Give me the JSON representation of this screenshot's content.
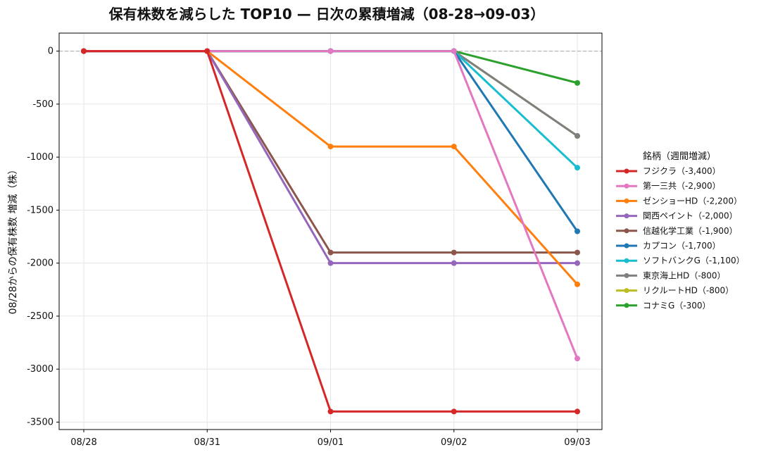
{
  "chart_data": {
    "type": "line",
    "title": "保有株数を減らした TOP10 — 日次の累積増減（08-28→09-03）",
    "xlabel": "",
    "ylabel": "08/28からの保有株数 増減（株）",
    "categories": [
      "08/28",
      "08/31",
      "09/01",
      "09/02",
      "09/03"
    ],
    "ylim": [
      -3570,
      170
    ],
    "yticks": [
      0,
      -500,
      -1000,
      -1500,
      -2000,
      -2500,
      -3000,
      -3500
    ],
    "ytick_labels": [
      "0",
      "-500",
      "-1000",
      "-1500",
      "-2000",
      "-2500",
      "-3000",
      "-3500"
    ],
    "grid": true,
    "zero_line": true,
    "legend_title": "銘柄（週間増減）",
    "legend_position": "right",
    "series": [
      {
        "name": "フジクラ（-3,400）",
        "color": "#d62728",
        "values": [
          0,
          0,
          -3400,
          -3400,
          -3400
        ]
      },
      {
        "name": "第一三共（-2,900）",
        "color": "#e377c2",
        "values": [
          0,
          0,
          0,
          0,
          -2900
        ]
      },
      {
        "name": "ゼンショーHD（-2,200）",
        "color": "#ff7f0e",
        "values": [
          0,
          0,
          -900,
          -900,
          -2200
        ]
      },
      {
        "name": "関西ペイント（-2,000）",
        "color": "#9467bd",
        "values": [
          0,
          0,
          -2000,
          -2000,
          -2000
        ]
      },
      {
        "name": "信越化学工業（-1,900）",
        "color": "#8c564b",
        "values": [
          0,
          0,
          -1900,
          -1900,
          -1900
        ]
      },
      {
        "name": "カプコン（-1,700）",
        "color": "#1f77b4",
        "values": [
          0,
          0,
          0,
          0,
          -1700
        ]
      },
      {
        "name": "ソフトバンクG（-1,100）",
        "color": "#17becf",
        "values": [
          0,
          0,
          0,
          0,
          -1100
        ]
      },
      {
        "name": "東京海上HD（-800）",
        "color": "#7f7f7f",
        "values": [
          0,
          0,
          0,
          0,
          -800
        ]
      },
      {
        "name": "リクルートHD（-800）",
        "color": "#bcbd22",
        "values": [
          0,
          0,
          0,
          0,
          -800
        ]
      },
      {
        "name": "コナミG（-300）",
        "color": "#2ca02c",
        "values": [
          0,
          0,
          0,
          0,
          -300
        ]
      }
    ]
  }
}
